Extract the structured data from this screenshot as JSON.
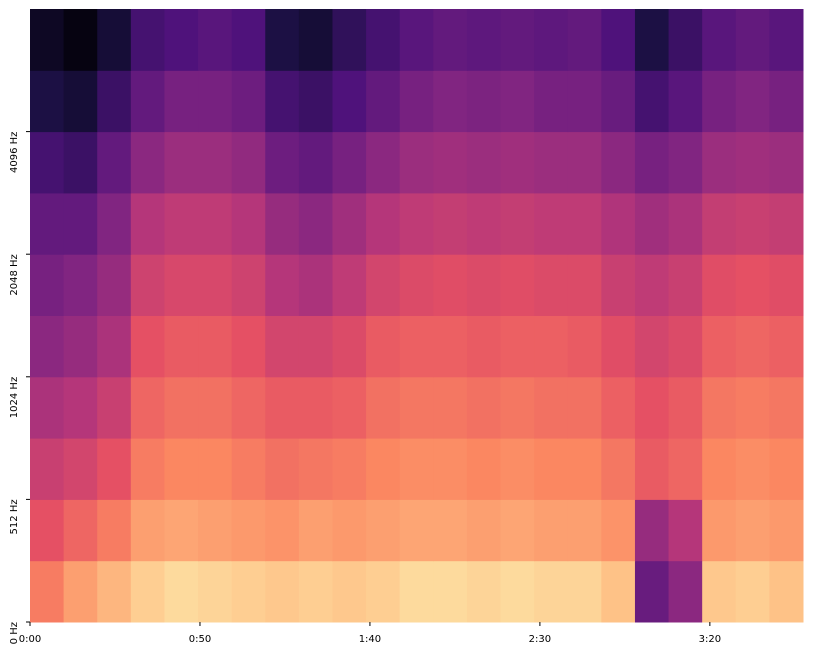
{
  "chart_data": {
    "type": "spectrogram",
    "xlim": [
      0,
      227.4
    ],
    "xticks": [
      {
        "value": 0,
        "label": "0:00"
      },
      {
        "value": 50,
        "label": "0:50"
      },
      {
        "value": 100,
        "label": "1:40"
      },
      {
        "value": 150,
        "label": "2:30"
      },
      {
        "value": 200,
        "label": "3:20"
      }
    ],
    "ylim": [
      0,
      8192
    ],
    "yscale": "mel",
    "yticks": [
      {
        "value": 0,
        "label": "0 Hz"
      },
      {
        "value": 512,
        "label": "512 Hz"
      },
      {
        "value": 1024,
        "label": "1024 Hz"
      },
      {
        "value": 2048,
        "label": "2048 Hz"
      },
      {
        "value": 4096,
        "label": "4096 Hz"
      }
    ],
    "colormap": "magma",
    "zlim": [
      -80,
      0
    ],
    "values": [
      [
        -22,
        -16,
        -12,
        -8,
        -6,
        -7,
        -8,
        -9,
        -8,
        -9,
        -8,
        -6,
        -6,
        -7,
        -6,
        -7,
        -7,
        -10,
        -55,
        -48,
        -9,
        -8,
        -10
      ],
      [
        -30,
        -26,
        -22,
        -16,
        -15,
        -16,
        -17,
        -18,
        -16,
        -17,
        -16,
        -15,
        -15,
        -16,
        -15,
        -16,
        -16,
        -18,
        -46,
        -40,
        -17,
        -16,
        -17
      ],
      [
        -36,
        -34,
        -30,
        -22,
        -20,
        -20,
        -22,
        -24,
        -23,
        -22,
        -20,
        -19,
        -19,
        -20,
        -19,
        -20,
        -20,
        -23,
        -28,
        -26,
        -20,
        -19,
        -20
      ],
      [
        -42,
        -40,
        -36,
        -26,
        -24,
        -24,
        -26,
        -28,
        -28,
        -27,
        -24,
        -23,
        -23,
        -24,
        -23,
        -24,
        -24,
        -27,
        -30,
        -28,
        -23,
        -22,
        -23
      ],
      [
        -48,
        -46,
        -42,
        -30,
        -28,
        -28,
        -30,
        -34,
        -34,
        -32,
        -28,
        -27,
        -27,
        -28,
        -27,
        -27,
        -28,
        -31,
        -34,
        -32,
        -27,
        -26,
        -27
      ],
      [
        -52,
        -50,
        -46,
        -35,
        -33,
        -33,
        -35,
        -40,
        -42,
        -38,
        -34,
        -32,
        -31,
        -32,
        -31,
        -32,
        -32,
        -36,
        -38,
        -36,
        -31,
        -30,
        -31
      ],
      [
        -56,
        -56,
        -50,
        -40,
        -38,
        -38,
        -40,
        -46,
        -48,
        -44,
        -40,
        -38,
        -37,
        -38,
        -37,
        -38,
        -38,
        -41,
        -44,
        -42,
        -37,
        -36,
        -37
      ],
      [
        -62,
        -64,
        -56,
        -48,
        -45,
        -45,
        -47,
        -54,
        -56,
        -52,
        -48,
        -45,
        -44,
        -45,
        -44,
        -45,
        -45,
        -48,
        -52,
        -50,
        -45,
        -44,
        -45
      ],
      [
        -70,
        -72,
        -64,
        -56,
        -52,
        -52,
        -54,
        -62,
        -64,
        -60,
        -56,
        -52,
        -50,
        -51,
        -50,
        -52,
        -52,
        -55,
        -62,
        -58,
        -52,
        -50,
        -52
      ],
      [
        -75,
        -78,
        -72,
        -62,
        -60,
        -58,
        -60,
        -70,
        -72,
        -66,
        -62,
        -58,
        -56,
        -57,
        -56,
        -57,
        -56,
        -60,
        -70,
        -64,
        -58,
        -56,
        -58
      ]
    ]
  }
}
